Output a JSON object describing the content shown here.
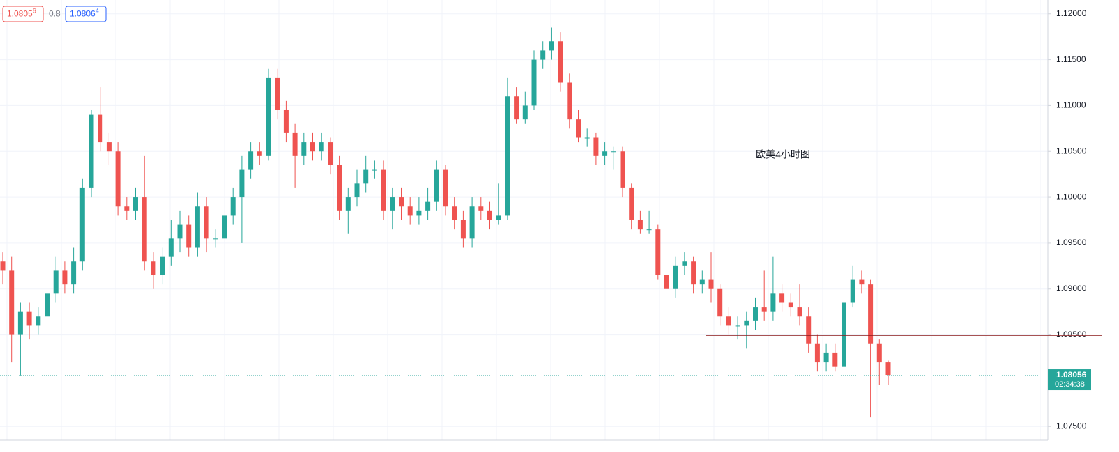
{
  "chart_data": {
    "type": "candlestick",
    "annotation": "欧美4小时图",
    "bid_main": "1.0805",
    "bid_sup": "6",
    "spread": "0.8",
    "ask_main": "1.0806",
    "ask_sup": "4",
    "last_price": 1.08056,
    "last_price_label": "1.08056",
    "countdown": "02:34:38",
    "level_line": 1.0849,
    "level_color": "#8b1a1a",
    "up_color": "#26a69a",
    "down_color": "#ef5350",
    "ylim": [
      1.0735,
      1.1215
    ],
    "yticks": [
      {
        "value": 1.12,
        "label": "1.12000"
      },
      {
        "value": 1.115,
        "label": "1.11500"
      },
      {
        "value": 1.11,
        "label": "1.11000"
      },
      {
        "value": 1.105,
        "label": "1.10500"
      },
      {
        "value": 1.1,
        "label": "1.10000"
      },
      {
        "value": 1.095,
        "label": "1.09500"
      },
      {
        "value": 1.09,
        "label": "1.09000"
      },
      {
        "value": 1.085,
        "label": "1.08500"
      },
      {
        "value": 1.075,
        "label": "1.07500"
      }
    ],
    "grid": true,
    "open": [
      1.093,
      1.092,
      1.085,
      1.0875,
      1.086,
      1.087,
      1.0895,
      1.092,
      1.0905,
      1.093,
      1.101,
      1.109,
      1.106,
      1.105,
      1.099,
      1.0985,
      1.1,
      1.093,
      1.0915,
      1.0935,
      1.0955,
      1.097,
      1.0945,
      1.099,
      1.0955,
      1.0955,
      1.098,
      1.1,
      1.103,
      1.105,
      1.1045,
      1.113,
      1.1095,
      1.107,
      1.1045,
      1.106,
      1.105,
      1.106,
      1.1035,
      1.0985,
      1.1,
      1.1015,
      1.103,
      1.103,
      1.0985,
      1.1,
      1.099,
      1.098,
      1.0985,
      1.0995,
      1.103,
      1.099,
      1.0975,
      1.0955,
      1.099,
      1.0985,
      1.0975,
      1.098,
      1.111,
      1.1085,
      1.11,
      1.115,
      1.116,
      1.117,
      1.1125,
      1.1085,
      1.1065,
      1.1065,
      1.1045,
      1.105,
      1.105,
      1.101,
      1.0975,
      1.0965,
      1.0965,
      1.0915,
      1.09,
      1.0925,
      1.093,
      1.0905,
      1.091,
      1.09,
      1.087,
      1.086,
      1.086,
      1.0865,
      1.088,
      1.0875,
      1.0895,
      1.0885,
      1.088,
      1.087,
      1.084,
      1.082,
      1.083,
      1.0815,
      1.0885,
      1.091,
      1.0905,
      1.084,
      1.082
    ],
    "high": [
      1.094,
      1.0935,
      1.0885,
      1.0885,
      1.088,
      1.0905,
      1.0935,
      1.093,
      1.0945,
      1.102,
      1.1095,
      1.112,
      1.107,
      1.106,
      1.1,
      1.101,
      1.1045,
      1.094,
      1.0945,
      1.0975,
      1.0985,
      1.098,
      1.1005,
      1.1,
      1.0965,
      1.099,
      1.101,
      1.1045,
      1.106,
      1.106,
      1.114,
      1.114,
      1.1105,
      1.108,
      1.107,
      1.107,
      1.107,
      1.1065,
      1.1045,
      1.101,
      1.103,
      1.1045,
      1.104,
      1.104,
      1.101,
      1.101,
      1.1,
      1.1,
      1.101,
      1.104,
      1.1035,
      1.1,
      1.0985,
      1.1,
      1.1,
      1.0995,
      1.1015,
      1.113,
      1.112,
      1.1115,
      1.116,
      1.117,
      1.1185,
      1.118,
      1.1135,
      1.1095,
      1.1075,
      1.107,
      1.106,
      1.1055,
      1.1055,
      1.1015,
      1.0985,
      1.0985,
      1.097,
      1.0925,
      1.0935,
      1.094,
      1.0935,
      1.092,
      1.094,
      1.0905,
      1.088,
      1.087,
      1.0875,
      1.089,
      1.092,
      1.0935,
      1.0905,
      1.0895,
      1.0905,
      1.088,
      1.085,
      1.084,
      1.084,
      1.089,
      1.0925,
      1.092,
      1.091,
      1.0845,
      1.0822
    ],
    "low": [
      1.0905,
      1.082,
      1.0805,
      1.0845,
      1.085,
      1.086,
      1.0885,
      1.0895,
      1.0895,
      1.092,
      1.1,
      1.105,
      1.1035,
      1.098,
      1.0975,
      1.0975,
      1.092,
      1.09,
      1.0905,
      1.0925,
      1.094,
      1.0935,
      1.0935,
      1.094,
      1.0945,
      1.0945,
      1.097,
      1.095,
      1.102,
      1.1035,
      1.104,
      1.1085,
      1.106,
      1.101,
      1.1035,
      1.104,
      1.104,
      1.1025,
      1.0975,
      1.096,
      1.099,
      1.1005,
      1.102,
      1.0975,
      1.0965,
      1.0975,
      1.097,
      1.097,
      1.0975,
      1.0985,
      1.098,
      1.0965,
      1.0945,
      1.0945,
      1.0975,
      1.0965,
      1.097,
      1.0975,
      1.108,
      1.108,
      1.1095,
      1.114,
      1.115,
      1.1115,
      1.1075,
      1.106,
      1.1055,
      1.1035,
      1.1035,
      1.103,
      1.1,
      1.0965,
      1.096,
      1.096,
      1.091,
      1.089,
      1.089,
      1.0915,
      1.0895,
      1.0895,
      1.0885,
      1.086,
      1.085,
      1.0845,
      1.0835,
      1.0855,
      1.0865,
      1.0865,
      1.0875,
      1.087,
      1.086,
      1.083,
      1.081,
      1.081,
      1.081,
      1.0805,
      1.088,
      1.0895,
      1.076,
      1.0795,
      1.0795
    ],
    "close": [
      1.092,
      1.085,
      1.0875,
      1.086,
      1.087,
      1.0895,
      1.092,
      1.0905,
      1.093,
      1.101,
      1.109,
      1.106,
      1.105,
      1.099,
      1.0985,
      1.1,
      1.093,
      1.0915,
      1.0935,
      1.0955,
      1.097,
      1.0945,
      1.099,
      1.0955,
      1.0955,
      1.098,
      1.1,
      1.103,
      1.105,
      1.1045,
      1.113,
      1.1095,
      1.107,
      1.1045,
      1.106,
      1.105,
      1.106,
      1.1035,
      1.0985,
      1.1,
      1.1015,
      1.103,
      1.103,
      1.0985,
      1.1,
      1.099,
      1.098,
      1.0985,
      1.0995,
      1.103,
      1.099,
      1.0975,
      1.0955,
      1.099,
      1.0985,
      1.0975,
      1.098,
      1.111,
      1.1085,
      1.11,
      1.115,
      1.116,
      1.117,
      1.1125,
      1.1085,
      1.1065,
      1.1065,
      1.1045,
      1.105,
      1.105,
      1.101,
      1.0975,
      1.0965,
      1.0965,
      1.0915,
      1.09,
      1.0925,
      1.093,
      1.0905,
      1.091,
      1.09,
      1.087,
      1.086,
      1.086,
      1.0865,
      1.088,
      1.0875,
      1.0895,
      1.0885,
      1.088,
      1.087,
      1.084,
      1.082,
      1.083,
      1.0815,
      1.0885,
      1.091,
      1.0905,
      1.084,
      1.082,
      1.08056
    ]
  }
}
